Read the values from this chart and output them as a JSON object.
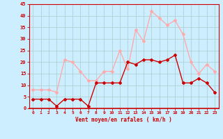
{
  "hours": [
    0,
    1,
    2,
    3,
    4,
    5,
    6,
    7,
    8,
    9,
    10,
    11,
    12,
    13,
    14,
    15,
    16,
    17,
    18,
    19,
    20,
    21,
    22,
    23
  ],
  "wind_avg": [
    4,
    4,
    4,
    1,
    4,
    4,
    4,
    1,
    11,
    11,
    11,
    11,
    20,
    19,
    21,
    21,
    20,
    21,
    23,
    11,
    11,
    13,
    11,
    7
  ],
  "wind_gust": [
    8,
    8,
    8,
    7,
    21,
    20,
    16,
    12,
    12,
    16,
    16,
    25,
    17,
    34,
    29,
    42,
    39,
    36,
    38,
    32,
    20,
    15,
    19,
    16
  ],
  "avg_color": "#cc0000",
  "gust_color": "#ffaaaa",
  "bg_color": "#cceeff",
  "grid_color": "#aacccc",
  "axis_color": "#cc0000",
  "text_color": "#cc0000",
  "xlabel": "Vent moyen/en rafales ( km/h )",
  "ylim": [
    0,
    45
  ],
  "yticks": [
    0,
    5,
    10,
    15,
    20,
    25,
    30,
    35,
    40,
    45
  ],
  "marker": "D",
  "avg_linewidth": 1.0,
  "gust_linewidth": 1.0,
  "markersize": 2.0
}
